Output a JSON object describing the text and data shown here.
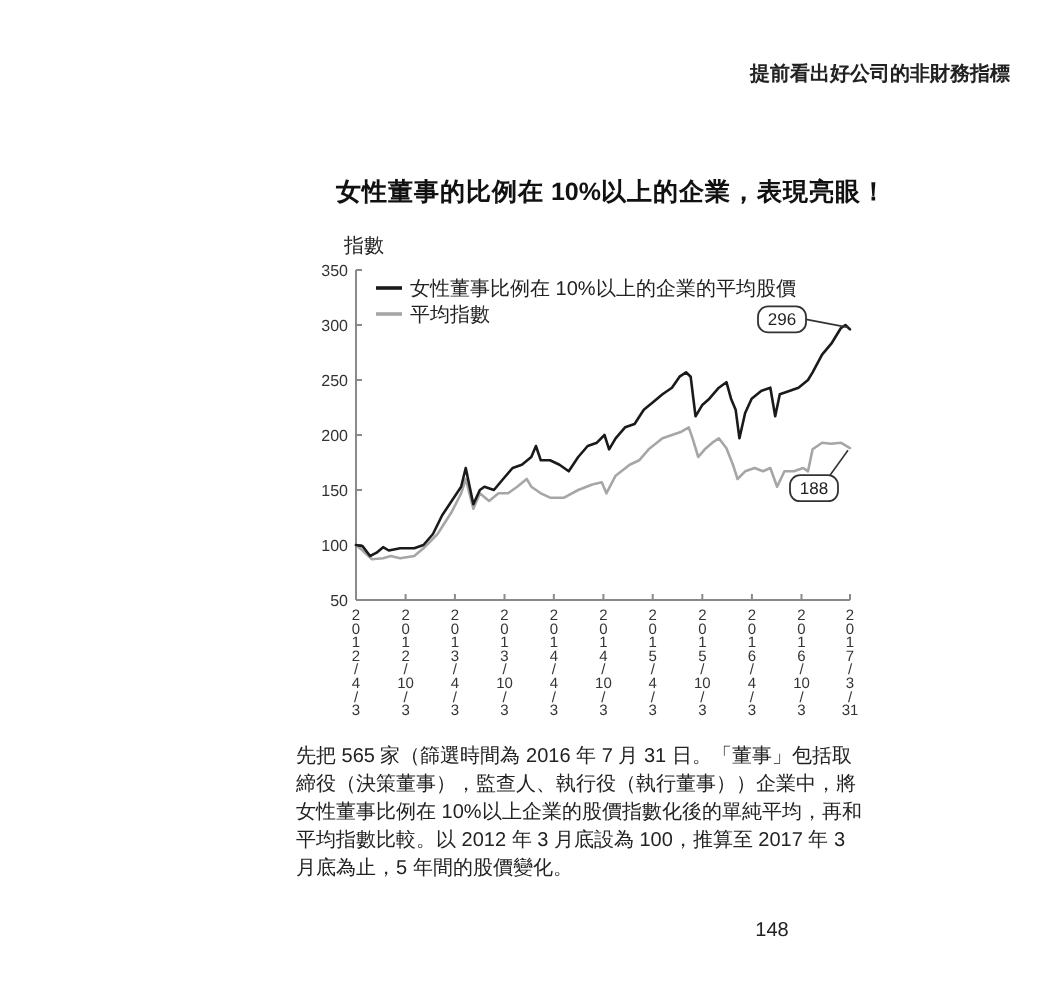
{
  "chart_data": {
    "type": "line",
    "title": "女性董事的比例在 10%以上的企業，表現亮眼！",
    "ylabel": "指數",
    "annotations": [
      "提前看出好公司的非財務指標",
      "先把 565 家（篩選時間為 2016 年 7 月 31 日。「董事」包括取締役（決策董事），監查人、執行役（執行董事））企業中，將女性董事比例在 10%以上企業的股價指數化後的單純平均，再和平均指數比較。以 2012 年 3 月底設為 100，推算至 2017 年 3 月底為止，5 年間的股價變化。",
      "148",
      {
        "text": "296",
        "x": "2017-03-31",
        "y": 296
      },
      {
        "text": "188",
        "x": "2017-03-31",
        "y": 188
      }
    ],
    "xlim": [
      "2012-04-03",
      "2017-03-31"
    ],
    "xticks": [
      {
        "value": "2012-04-03",
        "label": "2012/4/3"
      },
      {
        "value": "2012-10-03",
        "label": "2012/10/3"
      },
      {
        "value": "2013-04-03",
        "label": "2013/4/3"
      },
      {
        "value": "2013-10-03",
        "label": "2013/10/3"
      },
      {
        "value": "2014-04-03",
        "label": "2014/4/3"
      },
      {
        "value": "2014-10-03",
        "label": "2014/10/3"
      },
      {
        "value": "2015-04-03",
        "label": "2015/4/3"
      },
      {
        "value": "2015-10-03",
        "label": "2015/10/3"
      },
      {
        "value": "2016-04-03",
        "label": "2016/4/3"
      },
      {
        "value": "2016-10-03",
        "label": "2016/10/3"
      },
      {
        "value": "2017-03-31",
        "label": "2017/3/31"
      }
    ],
    "ylim": [
      50,
      350
    ],
    "yticks": [
      50,
      100,
      150,
      200,
      250,
      300,
      350
    ],
    "legend": "top left",
    "series": [
      {
        "name": "女性董事比例在 10%以上的企業的平均股價",
        "color": "#1a1a1a",
        "x": [
          "2012-04-03",
          "2012-04-27",
          "2012-05-25",
          "2012-06-18",
          "2012-07-12",
          "2012-08-02",
          "2012-09-13",
          "2012-11-04",
          "2012-12-08",
          "2013-01-12",
          "2013-02-15",
          "2013-03-22",
          "2013-04-26",
          "2013-05-13",
          "2013-06-10",
          "2013-07-04",
          "2013-07-21",
          "2013-08-25",
          "2013-09-28",
          "2013-11-02",
          "2013-12-06",
          "2014-01-10",
          "2014-01-27",
          "2014-02-14",
          "2014-03-20",
          "2014-04-24",
          "2014-05-28",
          "2014-07-02",
          "2014-08-06",
          "2014-09-09",
          "2014-10-07",
          "2014-10-24",
          "2014-11-17",
          "2014-12-22",
          "2015-01-26",
          "2015-03-01",
          "2015-04-05",
          "2015-05-09",
          "2015-06-13",
          "2015-07-11",
          "2015-08-04",
          "2015-08-21",
          "2015-09-08",
          "2015-10-02",
          "2015-10-29",
          "2015-12-03",
          "2015-12-31",
          "2016-01-17",
          "2016-02-03",
          "2016-02-17",
          "2016-03-09",
          "2016-04-02",
          "2016-05-07",
          "2016-06-10",
          "2016-06-28",
          "2016-07-15",
          "2016-08-19",
          "2016-09-22",
          "2016-10-27",
          "2016-11-13",
          "2016-12-18",
          "2017-01-21",
          "2017-02-25",
          "2017-03-14",
          "2017-03-31"
        ],
        "values": [
          100,
          99,
          90,
          93,
          98,
          95,
          97,
          97,
          100,
          110,
          127,
          140,
          153,
          170,
          137,
          150,
          153,
          150,
          160,
          170,
          173,
          180,
          190,
          177,
          177,
          173,
          167,
          180,
          190,
          193,
          200,
          187,
          197,
          207,
          210,
          223,
          230,
          237,
          243,
          253,
          257,
          253,
          217,
          227,
          233,
          243,
          248,
          233,
          223,
          197,
          220,
          233,
          240,
          243,
          217,
          237,
          240,
          243,
          250,
          257,
          273,
          283,
          297,
          300,
          296
        ]
      },
      {
        "name": "平均指數",
        "color": "#a6a6a6",
        "x": [
          "2012-04-03",
          "2012-04-27",
          "2012-06-01",
          "2012-07-12",
          "2012-08-09",
          "2012-09-13",
          "2012-11-04",
          "2012-12-08",
          "2013-01-29",
          "2013-03-22",
          "2013-04-26",
          "2013-05-13",
          "2013-06-10",
          "2013-07-04",
          "2013-08-07",
          "2013-09-11",
          "2013-10-16",
          "2013-11-19",
          "2013-12-24",
          "2014-01-10",
          "2014-02-14",
          "2014-03-20",
          "2014-05-11",
          "2014-07-02",
          "2014-08-23",
          "2014-09-27",
          "2014-10-14",
          "2014-11-17",
          "2015-01-08",
          "2015-02-12",
          "2015-03-19",
          "2015-05-09",
          "2015-06-13",
          "2015-07-18",
          "2015-08-14",
          "2015-08-28",
          "2015-09-18",
          "2015-10-12",
          "2015-11-09",
          "2015-12-03",
          "2015-12-31",
          "2016-01-24",
          "2016-02-10",
          "2016-03-09",
          "2016-04-13",
          "2016-05-14",
          "2016-06-10",
          "2016-07-05",
          "2016-08-01",
          "2016-09-05",
          "2016-10-09",
          "2016-10-27",
          "2016-11-13",
          "2016-12-18",
          "2017-01-21",
          "2017-02-25",
          "2017-03-31"
        ],
        "values": [
          100,
          95,
          87,
          88,
          90,
          88,
          90,
          97,
          110,
          130,
          147,
          160,
          133,
          147,
          140,
          147,
          147,
          153,
          160,
          153,
          147,
          143,
          143,
          150,
          155,
          157,
          147,
          163,
          173,
          177,
          187,
          197,
          200,
          203,
          207,
          197,
          180,
          187,
          193,
          197,
          188,
          173,
          160,
          167,
          170,
          167,
          170,
          153,
          167,
          167,
          170,
          167,
          187,
          193,
          192,
          193,
          188
        ]
      }
    ]
  }
}
